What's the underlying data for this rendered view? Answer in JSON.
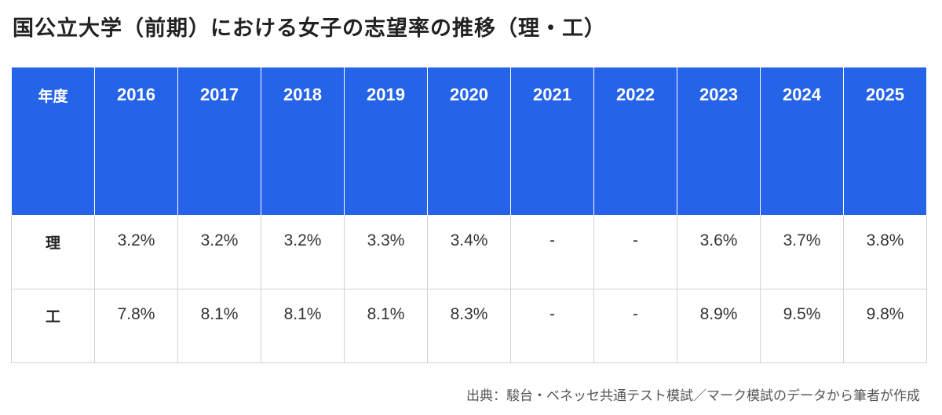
{
  "title": "国公立大学（前期）における女子の志望率の推移（理・工）",
  "table": {
    "header_label": "年度",
    "years": [
      "2016",
      "2017",
      "2018",
      "2019",
      "2020",
      "2021",
      "2022",
      "2023",
      "2024",
      "2025"
    ],
    "rows": [
      {
        "label": "理",
        "values": [
          "3.2%",
          "3.2%",
          "3.2%",
          "3.3%",
          "3.4%",
          "-",
          "-",
          "3.6%",
          "3.7%",
          "3.8%"
        ]
      },
      {
        "label": "工",
        "values": [
          "7.8%",
          "8.1%",
          "8.1%",
          "8.1%",
          "8.3%",
          "-",
          "-",
          "8.9%",
          "9.5%",
          "9.8%"
        ]
      }
    ]
  },
  "source": "出典：駿台・ベネッセ共通テスト模試／マーク模試のデータから筆者が作成",
  "colors": {
    "header_bg": "#2563e8",
    "header_text": "#ffffff",
    "border": "#cdd3da"
  }
}
